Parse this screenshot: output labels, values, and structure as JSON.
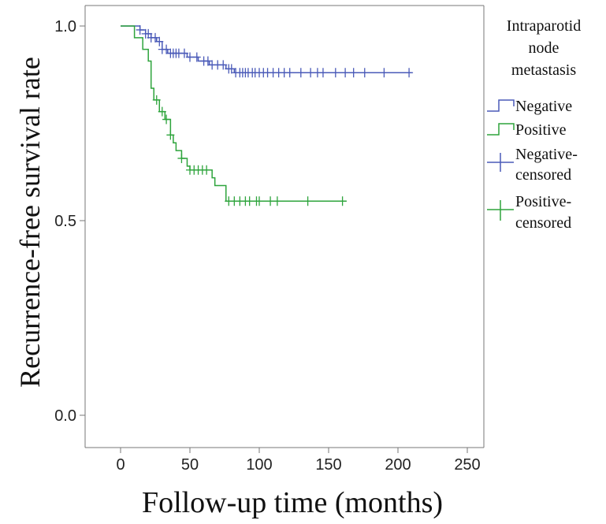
{
  "chart_data": {
    "type": "line",
    "xlabel": "Follow-up time (months)",
    "ylabel": "Recurrence-free survival rate",
    "xlim": [
      0,
      250
    ],
    "ylim": [
      0,
      1
    ],
    "x_ticks": [
      "0",
      "50",
      "100",
      "150",
      "200",
      "250"
    ],
    "y_ticks": [
      "0.0",
      "0.5",
      "1.0"
    ],
    "grid": false,
    "legend": {
      "title": "Intraparotid node metastasis",
      "position": "right",
      "entries": [
        {
          "label": "Negative",
          "marker": "step"
        },
        {
          "label": "Positive",
          "marker": "step"
        },
        {
          "label": "Negative-censored",
          "marker": "cross"
        },
        {
          "label": "Positive-censored",
          "marker": "cross"
        }
      ]
    },
    "series": [
      {
        "name": "Negative",
        "color": "#4a5ab8",
        "steps": [
          [
            0,
            1.0
          ],
          [
            14,
            0.99
          ],
          [
            18,
            0.98
          ],
          [
            22,
            0.97
          ],
          [
            26,
            0.96
          ],
          [
            30,
            0.94
          ],
          [
            34,
            0.93
          ],
          [
            48,
            0.92
          ],
          [
            56,
            0.91
          ],
          [
            64,
            0.9
          ],
          [
            76,
            0.89
          ],
          [
            82,
            0.88
          ],
          [
            210,
            0.88
          ]
        ],
        "censored": [
          14,
          18,
          20,
          22,
          25,
          28,
          30,
          33,
          36,
          38,
          40,
          42,
          46,
          50,
          55,
          60,
          63,
          66,
          70,
          74,
          78,
          80,
          83,
          86,
          88,
          90,
          92,
          95,
          97,
          100,
          103,
          106,
          110,
          114,
          118,
          122,
          130,
          137,
          142,
          146,
          155,
          162,
          168,
          176,
          190,
          208
        ]
      },
      {
        "name": "Positive",
        "color": "#2ea43c",
        "steps": [
          [
            0,
            1.0
          ],
          [
            10,
            0.97
          ],
          [
            16,
            0.94
          ],
          [
            20,
            0.91
          ],
          [
            22,
            0.84
          ],
          [
            24,
            0.81
          ],
          [
            28,
            0.78
          ],
          [
            32,
            0.76
          ],
          [
            36,
            0.72
          ],
          [
            38,
            0.7
          ],
          [
            40,
            0.68
          ],
          [
            44,
            0.66
          ],
          [
            48,
            0.64
          ],
          [
            50,
            0.63
          ],
          [
            66,
            0.61
          ],
          [
            68,
            0.59
          ],
          [
            76,
            0.55
          ],
          [
            163,
            0.55
          ]
        ],
        "censored": [
          26,
          30,
          33,
          36,
          44,
          50,
          53,
          56,
          59,
          62,
          78,
          82,
          86,
          90,
          93,
          98,
          100,
          108,
          113,
          135,
          160
        ]
      }
    ]
  }
}
